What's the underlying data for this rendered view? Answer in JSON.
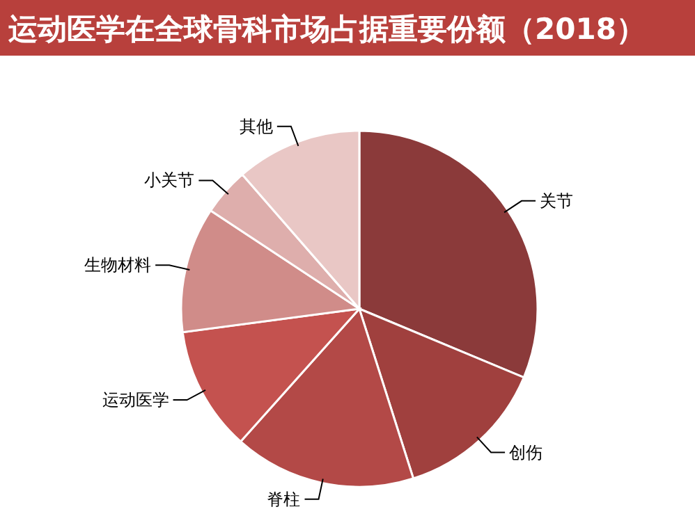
{
  "chart_data": {
    "type": "pie",
    "title": "运动医学在全球骨科市场占据重要份额（2018）",
    "categories": [
      "关节",
      "创伤",
      "脊柱",
      "运动医学",
      "生物材料",
      "小关节",
      "其他"
    ],
    "values": [
      31.3,
      13.8,
      16.5,
      11.3,
      11.4,
      4.3,
      11.4
    ],
    "colors": [
      "#8b3a3a",
      "#a0403e",
      "#b34947",
      "#c4524f",
      "#d08c89",
      "#deaeac",
      "#e9c7c5"
    ]
  }
}
